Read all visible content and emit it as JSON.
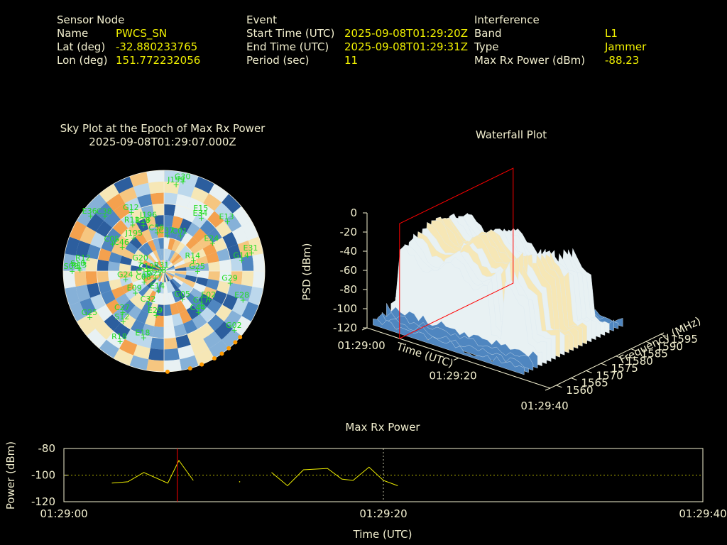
{
  "header": {
    "sensor": {
      "heading": "Sensor Node",
      "name_label": "Name",
      "name": "PWCS_SN",
      "lat_label": "Lat (deg)",
      "lat": "-32.880233765",
      "lon_label": "Lon (deg)",
      "lon": "151.772232056"
    },
    "event": {
      "heading": "Event",
      "start_label": "Start Time (UTC)",
      "start": "2025-09-08T01:29:20Z",
      "end_label": "End Time (UTC)",
      "end": "2025-09-08T01:29:31Z",
      "period_label": "Period (sec)",
      "period": "11"
    },
    "interference": {
      "heading": "Interference",
      "band_label": "Band",
      "band": "L1",
      "type_label": "Type",
      "type": "Jammer",
      "maxrx_label": "Max Rx Power (dBm)",
      "maxrx": "-88.23"
    }
  },
  "colors": {
    "label": "#f2efcf",
    "value": "#f0f000",
    "sat": "#22dd22",
    "marker": "#ff0000",
    "line": "#f0f000",
    "trace": "#ff9a00"
  },
  "chart_data": [
    {
      "type": "scatter",
      "title": "Sky Plot at the Epoch of Max Rx Power",
      "subtitle": "2025-09-08T01:29:07.000Z",
      "projection": "polar",
      "satellites": [
        {
          "id": "G12",
          "az": 331,
          "el": 30
        },
        {
          "id": "J196",
          "az": 343,
          "el": 42
        },
        {
          "id": "J199",
          "az": 8,
          "el": 12
        },
        {
          "id": "G30",
          "az": 12,
          "el": 8
        },
        {
          "id": "E15",
          "az": 33,
          "el": 28
        },
        {
          "id": "E34",
          "az": 35,
          "el": 32
        },
        {
          "id": "E13",
          "az": 52,
          "el": 18
        },
        {
          "id": "E36",
          "az": 307,
          "el": 8
        },
        {
          "id": "C38",
          "az": 313,
          "el": 18
        },
        {
          "id": "R11",
          "az": 326,
          "el": 40
        },
        {
          "id": "R18",
          "az": 336,
          "el": 45
        },
        {
          "id": "C01",
          "az": 25,
          "el": 55
        },
        {
          "id": "C59",
          "az": 350,
          "el": 55
        },
        {
          "id": "C37",
          "az": 5,
          "el": 58
        },
        {
          "id": "E24",
          "az": 60,
          "el": 40
        },
        {
          "id": "J195",
          "az": 318,
          "el": 50
        },
        {
          "id": "C05",
          "az": 298,
          "el": 38
        },
        {
          "id": "C46",
          "az": 300,
          "el": 47
        },
        {
          "id": "R12",
          "az": 276,
          "el": 18
        },
        {
          "id": "R13",
          "az": 271,
          "el": 15
        },
        {
          "id": "S08",
          "az": 270,
          "el": 8
        },
        {
          "id": "S10",
          "az": 272,
          "el": 14
        },
        {
          "id": "G14",
          "az": 82,
          "el": 20
        },
        {
          "id": "R14",
          "az": 70,
          "el": 62
        },
        {
          "id": "G25",
          "az": 90,
          "el": 60
        },
        {
          "id": "E31",
          "az": 78,
          "el": 10
        },
        {
          "id": "G20",
          "az": 290,
          "el": 68
        },
        {
          "id": "R31",
          "az": 310,
          "el": 88
        },
        {
          "id": "C19",
          "az": 270,
          "el": 75
        },
        {
          "id": "C16",
          "az": 255,
          "el": 72
        },
        {
          "id": "G27",
          "az": 232,
          "el": 80
        },
        {
          "id": "G29",
          "az": 100,
          "el": 30
        },
        {
          "id": "G24",
          "az": 258,
          "el": 55
        },
        {
          "id": "C23",
          "az": 230,
          "el": 85
        },
        {
          "id": "C08",
          "az": 242,
          "el": 70
        },
        {
          "id": "E09",
          "az": 233,
          "el": 58
        },
        {
          "id": "E14",
          "az": 196,
          "el": 72
        },
        {
          "id": "C32",
          "az": 205,
          "el": 58
        },
        {
          "id": "E02",
          "az": 122,
          "el": 42
        },
        {
          "id": "E28",
          "az": 110,
          "el": 15
        },
        {
          "id": "G05",
          "az": 146,
          "el": 60
        },
        {
          "id": "G17",
          "az": 132,
          "el": 45
        },
        {
          "id": "C44",
          "az": 140,
          "el": 42
        },
        {
          "id": "G02",
          "az": 130,
          "el": 8
        },
        {
          "id": "E29",
          "az": 190,
          "el": 50
        },
        {
          "id": "C27",
          "az": 225,
          "el": 38
        },
        {
          "id": "G25",
          "az": 238,
          "el": 12
        },
        {
          "id": "S12",
          "az": 219,
          "el": 32
        },
        {
          "id": "R18",
          "az": 212,
          "el": 16
        },
        {
          "id": "E18",
          "az": 197,
          "el": 28
        }
      ],
      "interference_track_az": [
        178,
        165,
        158,
        150,
        145,
        140,
        135,
        131
      ]
    },
    {
      "type": "area",
      "title": "Waterfall Plot",
      "xlabel": "Time (UTC)",
      "ylabel": "Frequency (MHz)",
      "zlabel": "PSD (dBm)",
      "time_ticks": [
        "01:29:00",
        "01:29:20",
        "01:29:40"
      ],
      "freq_ticks": [
        1560,
        1565,
        1570,
        1575,
        1580,
        1585,
        1590,
        1595
      ],
      "psd_ticks": [
        0,
        -20,
        -40,
        -60,
        -80,
        -100,
        -120
      ],
      "zlim": [
        -120,
        0
      ],
      "marker_time": "01:29:07"
    },
    {
      "type": "line",
      "title": "Max Rx Power",
      "xlabel": "Time (UTC)",
      "ylabel": "Power (dBm)",
      "ylim": [
        -120,
        -80
      ],
      "y_ticks": [
        -80,
        -100,
        -120
      ],
      "x_ticks": [
        "01:29:00",
        "01:29:20",
        "01:29:40"
      ],
      "xlim_sec": [
        0,
        40
      ],
      "segments": [
        {
          "x": [
            3,
            4,
            5,
            6.5,
            7.2,
            8.1
          ],
          "y": [
            -106,
            -105,
            -98,
            -106,
            -89,
            -104
          ]
        },
        {
          "x": [
            11
          ],
          "y": [
            -105
          ]
        },
        {
          "x": [
            13,
            14,
            15,
            16.5,
            17.4,
            18.1,
            19.1,
            20,
            20.9
          ],
          "y": [
            -98,
            -108,
            -96,
            -95,
            -103,
            -104,
            -94,
            -104,
            -108
          ]
        }
      ],
      "marker_sec": 7.1
    }
  ]
}
